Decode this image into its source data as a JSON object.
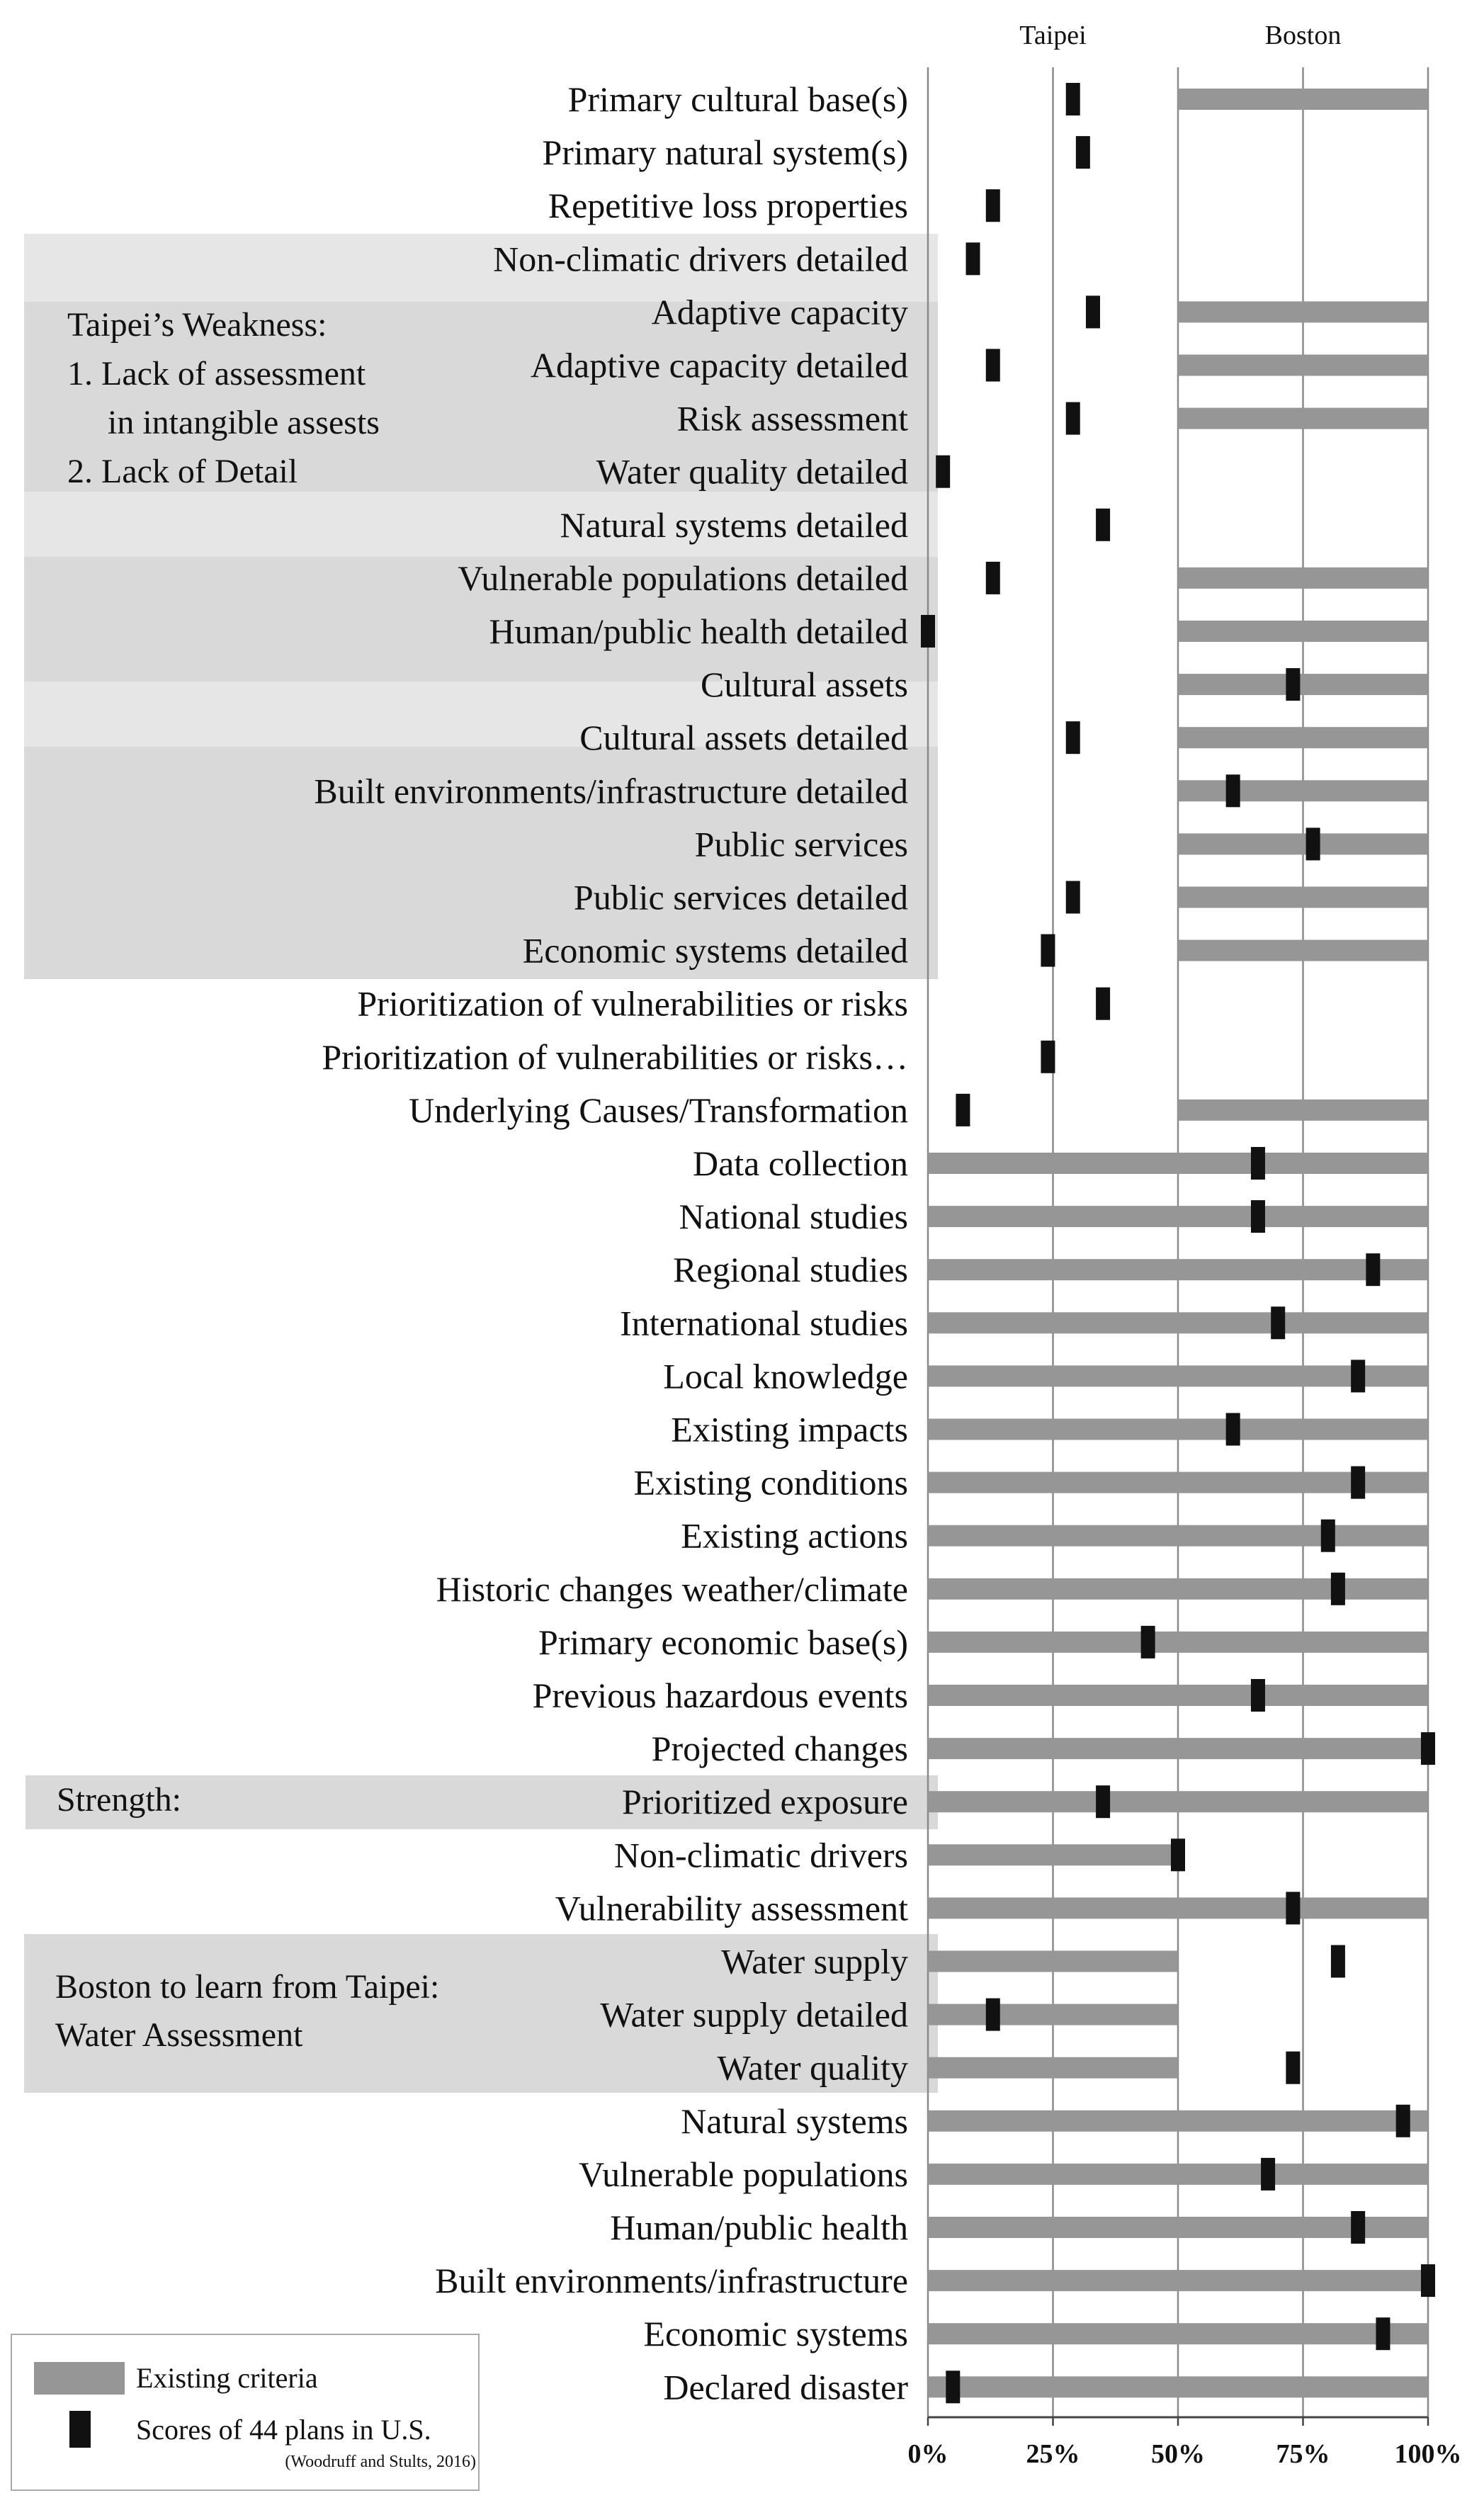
{
  "chart_data": {
    "type": "bar",
    "orientation": "horizontal",
    "x_tick_labels": [
      "0%",
      "25%",
      "50%",
      "75%",
      "100%"
    ],
    "xlim": [
      0,
      100
    ],
    "reference_lines": [
      {
        "label": "Taipei",
        "value": 25
      },
      {
        "label": "Boston",
        "value": 75
      }
    ],
    "categories": [
      "Primary cultural base(s)",
      "Primary natural system(s)",
      "Repetitive loss properties",
      "Non-climatic drivers detailed",
      "Adaptive capacity",
      "Adaptive capacity detailed",
      "Risk assessment",
      "Water quality detailed",
      "Natural systems detailed",
      "Vulnerable populations detailed",
      "Human/public health detailed",
      "Cultural assets",
      "Cultural assets detailed",
      "Built environments/infrastructure detailed",
      "Public services",
      "Public services detailed",
      "Economic systems detailed",
      "Prioritization of vulnerabilities or risks",
      "Prioritization of vulnerabilities or risks…",
      "Underlying Causes/Transformation",
      "Data collection",
      "National studies",
      "Regional studies",
      "International studies",
      "Local knowledge",
      "Existing impacts",
      "Existing conditions",
      "Existing actions",
      "Historic changes weather/climate",
      "Primary economic base(s)",
      "Previous hazardous events",
      "Projected changes",
      "Prioritized exposure",
      "Non-climatic drivers",
      "Vulnerability assessment",
      "Water supply",
      "Water supply detailed",
      "Water quality",
      "Natural systems",
      "Vulnerable populations",
      "Human/public health",
      "Built environments/infrastructure",
      "Economic systems",
      "Declared disaster"
    ],
    "series": [
      {
        "name": "Existing criteria",
        "mark": "bar",
        "color": "#969696",
        "segments": [
          [
            [
              50,
              100
            ]
          ],
          [],
          [],
          [],
          [
            [
              50,
              100
            ]
          ],
          [
            [
              50,
              100
            ]
          ],
          [
            [
              50,
              100
            ]
          ],
          [],
          [],
          [
            [
              50,
              100
            ]
          ],
          [
            [
              50,
              100
            ]
          ],
          [
            [
              50,
              100
            ]
          ],
          [
            [
              50,
              100
            ]
          ],
          [
            [
              50,
              100
            ]
          ],
          [
            [
              50,
              100
            ]
          ],
          [
            [
              50,
              100
            ]
          ],
          [
            [
              50,
              100
            ]
          ],
          [],
          [],
          [
            [
              50,
              100
            ]
          ],
          [
            [
              0,
              100
            ]
          ],
          [
            [
              0,
              100
            ]
          ],
          [
            [
              0,
              100
            ]
          ],
          [
            [
              0,
              100
            ]
          ],
          [
            [
              0,
              100
            ]
          ],
          [
            [
              0,
              100
            ]
          ],
          [
            [
              0,
              100
            ]
          ],
          [
            [
              0,
              100
            ]
          ],
          [
            [
              0,
              100
            ]
          ],
          [
            [
              0,
              100
            ]
          ],
          [
            [
              0,
              100
            ]
          ],
          [
            [
              0,
              100
            ]
          ],
          [
            [
              0,
              100
            ]
          ],
          [
            [
              0,
              50
            ]
          ],
          [
            [
              0,
              100
            ]
          ],
          [
            [
              0,
              50
            ]
          ],
          [
            [
              0,
              50
            ]
          ],
          [
            [
              0,
              50
            ]
          ],
          [
            [
              0,
              100
            ]
          ],
          [
            [
              0,
              100
            ]
          ],
          [
            [
              0,
              100
            ]
          ],
          [
            [
              0,
              100
            ]
          ],
          [
            [
              0,
              100
            ]
          ],
          [
            [
              0,
              100
            ]
          ]
        ]
      },
      {
        "name": "Scores of  44 plans in U.S.",
        "mark": "marker",
        "color": "#111111",
        "values": [
          29,
          31,
          13,
          9,
          33,
          13,
          29,
          3,
          35,
          13,
          0,
          73,
          29,
          61,
          77,
          29,
          24,
          35,
          24,
          7,
          66,
          66,
          89,
          70,
          86,
          61,
          86,
          80,
          82,
          44,
          66,
          100,
          35,
          50,
          73,
          82,
          13,
          73,
          95,
          68,
          86,
          100,
          91,
          5
        ]
      }
    ],
    "annotations": {
      "weakness": {
        "title": "Taipei’s Weakness:",
        "items": [
          "1. Lack of assessment",
          "in intangible assests",
          "2. Lack of Detail"
        ]
      },
      "strength": "Strength:",
      "learn": [
        "Boston to learn from Taipei:",
        "Water Assessment"
      ]
    },
    "legend": {
      "position": "bottom-left",
      "existing": "Existing criteria",
      "scores": "Scores of  44 plans in U.S.",
      "source": "(Woodruff and Stults, 2016)"
    }
  }
}
